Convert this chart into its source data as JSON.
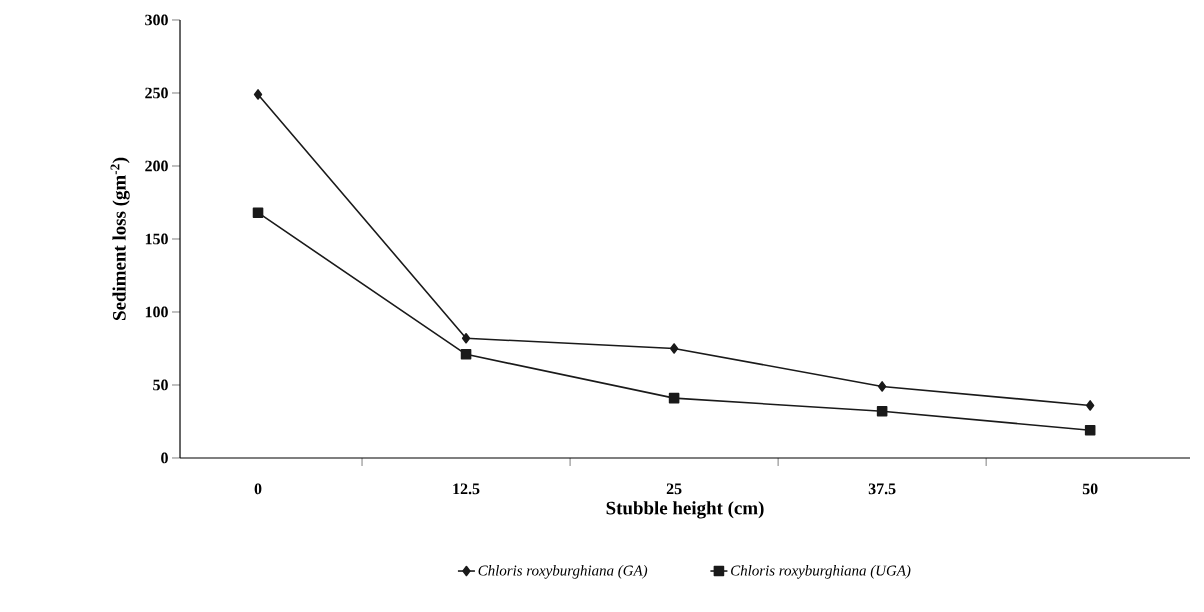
{
  "chart_data": {
    "type": "line",
    "xlabel": "Stubble height (cm)",
    "ylabel": "Sediment loss (gm$^{-2}$)",
    "categories": [
      "0",
      "12.5",
      "25",
      "37.5",
      "50"
    ],
    "series": [
      {
        "name": "Chloris roxyburghiana (GA)",
        "color": "#1a1a1a",
        "marker": "diamond",
        "values": [
          249,
          82,
          75,
          49,
          36
        ]
      },
      {
        "name": "Chloris roxyburghiana (UGA)",
        "color": "#1a1a1a",
        "marker": "square",
        "values": [
          168,
          71,
          41,
          32,
          19
        ]
      }
    ],
    "ylim": [
      0,
      300
    ],
    "yticks": [
      0,
      50,
      100,
      150,
      200,
      250,
      300
    ],
    "legend": "bottom"
  }
}
